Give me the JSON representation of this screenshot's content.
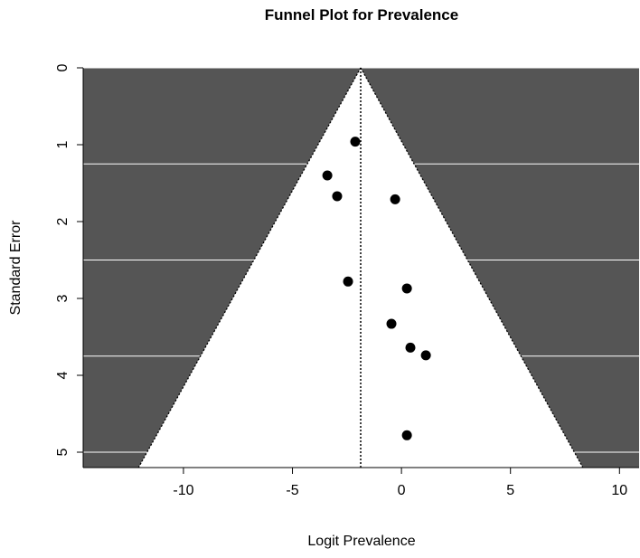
{
  "chart_data": {
    "type": "scatter",
    "title": "Funnel Plot for Prevalence",
    "xlabel": "Logit Prevalence",
    "ylabel": "Standard Error",
    "xlim": [
      -14.6,
      10.9
    ],
    "ylim": [
      0,
      5.2
    ],
    "y_reversed": true,
    "x_ticks": [
      -10,
      -5,
      0,
      5,
      10
    ],
    "y_ticks": [
      0,
      1,
      2,
      3,
      4,
      5
    ],
    "y_gridlines": [
      0,
      1.25,
      2.5,
      3.75,
      5
    ],
    "center_estimate": -1.87,
    "funnel_z": 1.96,
    "background_color": "#555555",
    "funnel_color": "#ffffff",
    "point_color": "#000000",
    "points": [
      {
        "x": -2.12,
        "y": 0.96
      },
      {
        "x": -3.4,
        "y": 1.4
      },
      {
        "x": -2.95,
        "y": 1.67
      },
      {
        "x": -0.29,
        "y": 1.71
      },
      {
        "x": -2.45,
        "y": 2.78
      },
      {
        "x": 0.25,
        "y": 2.87
      },
      {
        "x": -0.46,
        "y": 3.33
      },
      {
        "x": 0.41,
        "y": 3.64
      },
      {
        "x": 1.12,
        "y": 3.74
      },
      {
        "x": 0.25,
        "y": 4.78
      }
    ]
  }
}
